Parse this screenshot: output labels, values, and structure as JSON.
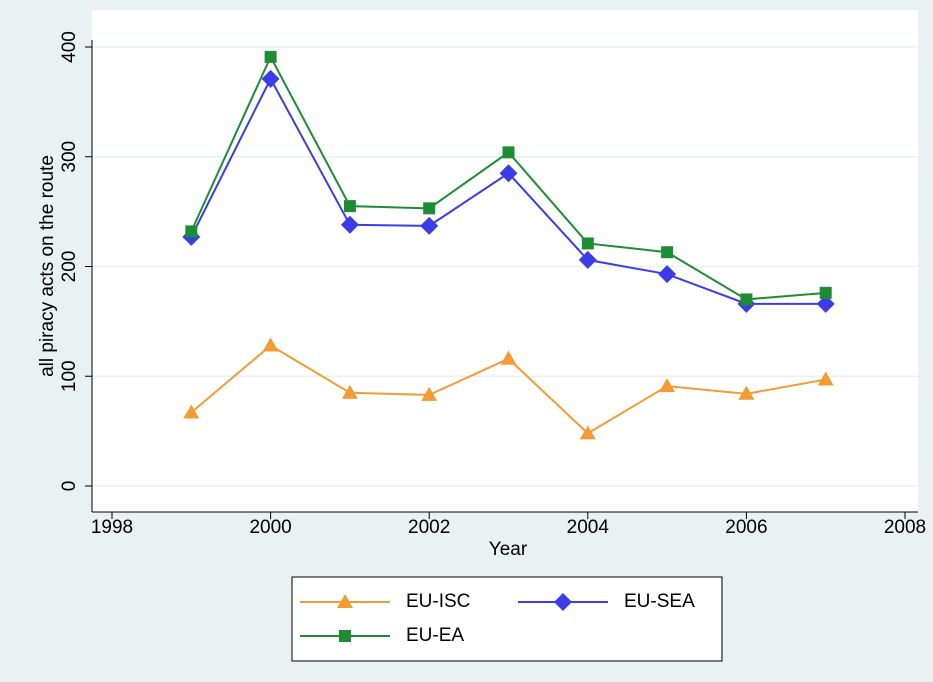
{
  "chart_data": {
    "type": "line",
    "x_label": "Year",
    "y_label": "all piracy acts on the route",
    "x": [
      1999,
      2000,
      2001,
      2002,
      2003,
      2004,
      2005,
      2006,
      2007
    ],
    "series": [
      {
        "name": "EU-ISC",
        "color": "#f39c34",
        "marker": "triangle",
        "values": [
          67,
          128,
          85,
          83,
          116,
          48,
          91,
          84,
          97
        ]
      },
      {
        "name": "EU-SEA",
        "color": "#3c3ce6",
        "marker": "diamond",
        "values": [
          227,
          371,
          238,
          237,
          285,
          206,
          193,
          166,
          166
        ]
      },
      {
        "name": "EU-EA",
        "color": "#1e8c32",
        "marker": "square",
        "values": [
          232,
          391,
          255,
          253,
          304,
          221,
          213,
          170,
          176
        ]
      }
    ],
    "xlim": [
      1998,
      2008
    ],
    "xticks": [
      1998,
      2000,
      2002,
      2004,
      2006,
      2008
    ],
    "ylim": [
      0,
      400
    ],
    "yticks": [
      0,
      100,
      200,
      300,
      400
    ],
    "grid": true,
    "legend": "bottom"
  }
}
